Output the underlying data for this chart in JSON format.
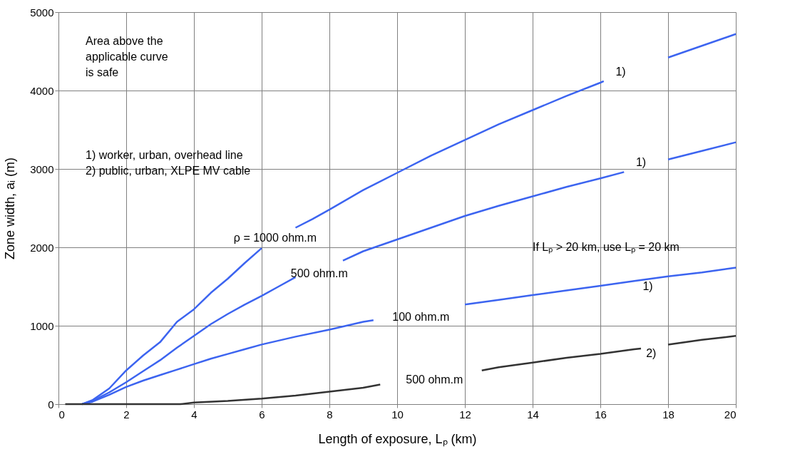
{
  "chart_data": {
    "type": "line",
    "xlabel": "Length of exposure, Lₚ (km)",
    "ylabel": "Zone width, aᵢ (m)",
    "xlim": [
      0,
      20
    ],
    "xticks": [
      0,
      2,
      4,
      6,
      8,
      10,
      12,
      14,
      16,
      18,
      20
    ],
    "ylim": [
      0,
      5000
    ],
    "yticks": [
      0,
      1000,
      2000,
      3000,
      4000,
      5000
    ],
    "tick_labels": true,
    "grid": true,
    "line_style": "solid",
    "marker": "none",
    "series": [
      {
        "color": "#3c64f0",
        "x": [
          0.7,
          1,
          1.5,
          2,
          2.5,
          3,
          3.5,
          4,
          4.5,
          5,
          5.5,
          6,
          6.3,
          7,
          7.5,
          8,
          9,
          10,
          11,
          12,
          13,
          14,
          15,
          16,
          16.1,
          17.2,
          18,
          19,
          20
        ],
        "values": [
          0,
          50,
          200,
          430,
          620,
          790,
          1050,
          1210,
          1420,
          1600,
          1800,
          1990,
          null,
          2250,
          2360,
          2480,
          2730,
          2950,
          3170,
          3370,
          3570,
          3750,
          3930,
          4100,
          4120,
          null,
          4420,
          4570,
          4720
        ]
      },
      {
        "color": "#3c64f0",
        "x": [
          0.7,
          1,
          1.5,
          2,
          2.5,
          3,
          3.5,
          4,
          4.5,
          5,
          5.5,
          6,
          6.5,
          7,
          7.5,
          8.4,
          9,
          10,
          11,
          12,
          13,
          14,
          15,
          16,
          16.7,
          17.8,
          18,
          19,
          20
        ],
        "values": [
          0,
          40,
          150,
          280,
          420,
          560,
          720,
          870,
          1020,
          1150,
          1270,
          1380,
          1500,
          1620,
          null,
          1830,
          1950,
          2100,
          2250,
          2400,
          2530,
          2650,
          2770,
          2880,
          2960,
          null,
          3120,
          3230,
          3340
        ]
      },
      {
        "color": "#3c64f0",
        "x": [
          0.7,
          1,
          1.5,
          2,
          2.5,
          3,
          3.5,
          4,
          4.5,
          5,
          5.5,
          6,
          7,
          8,
          9,
          9.3,
          10.5,
          12,
          13,
          14,
          15,
          16,
          17,
          18,
          19,
          20
        ],
        "values": [
          0,
          30,
          120,
          220,
          300,
          370,
          440,
          510,
          580,
          640,
          700,
          760,
          860,
          950,
          1050,
          1070,
          null,
          1270,
          1330,
          1390,
          1450,
          1510,
          1570,
          1630,
          1680,
          1740
        ]
      },
      {
        "color": "#333333",
        "x": [
          0.2,
          1,
          2,
          3,
          3.6,
          4,
          5,
          6,
          7,
          8,
          9,
          9.5,
          11,
          12.5,
          13,
          14,
          15,
          16,
          17,
          17.2,
          17.8,
          18,
          19,
          20
        ],
        "values": [
          0,
          0,
          0,
          0,
          0,
          20,
          40,
          70,
          110,
          160,
          210,
          250,
          null,
          430,
          470,
          530,
          590,
          640,
          700,
          710,
          null,
          760,
          820,
          870
        ]
      }
    ],
    "annotations": [
      "Area above the\napplicable curve\nis safe",
      "1) worker, urban, overhead line",
      "2) public, urban, XLPE MV cable",
      "If Lₚ > 20 km, use Lₚ = 20 km",
      "ρ = 1000 ohm.m",
      "500 ohm.m",
      "100 ohm.m",
      "500 ohm.m",
      "1)",
      "1)",
      "1)",
      "2)"
    ]
  }
}
